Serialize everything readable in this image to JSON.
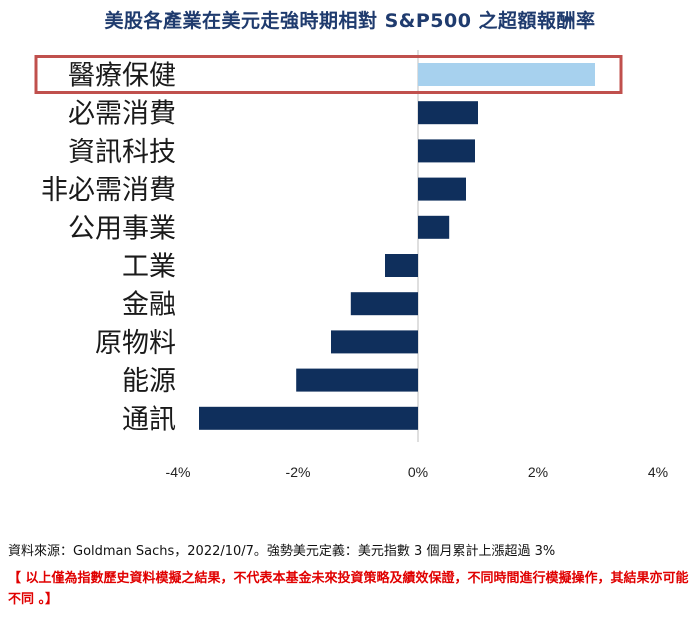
{
  "title": "美股各產業在美元走強時期相對 S&P500 之超額報酬率",
  "colors": {
    "bar": "#0f2f5c",
    "highlight_bar": "#a7d1ee",
    "highlight_box": "#c0504d",
    "title": "#1f3b6e",
    "disclaimer": "#e00000"
  },
  "chart_data": {
    "type": "bar",
    "orientation": "horizontal",
    "categories": [
      "醫療保健",
      "必需消費",
      "資訊科技",
      "非必需消費",
      "公用事業",
      "工業",
      "金融",
      "原物料",
      "能源",
      "通訊"
    ],
    "values": [
      2.95,
      1.0,
      0.95,
      0.8,
      0.52,
      -0.55,
      -1.12,
      -1.45,
      -2.03,
      -3.65
    ],
    "highlighted_category": "醫療保健",
    "xlim": [
      -4,
      4
    ],
    "xticks": [
      "-4%",
      "-2%",
      "0%",
      "2%",
      "4%"
    ],
    "xtick_values": [
      -4,
      -2,
      0,
      2,
      4
    ],
    "unit": "%",
    "grid": false
  },
  "source": "資料來源：Goldman Sachs，2022/10/7。強勢美元定義：美元指數 3 個月累計上漲超過 3%",
  "disclaimer": "【 以上僅為指數歷史資料模擬之結果，不代表本基金未來投資策略及績效保證，不同時間進行模擬操作，其結果亦可能不同 。】"
}
